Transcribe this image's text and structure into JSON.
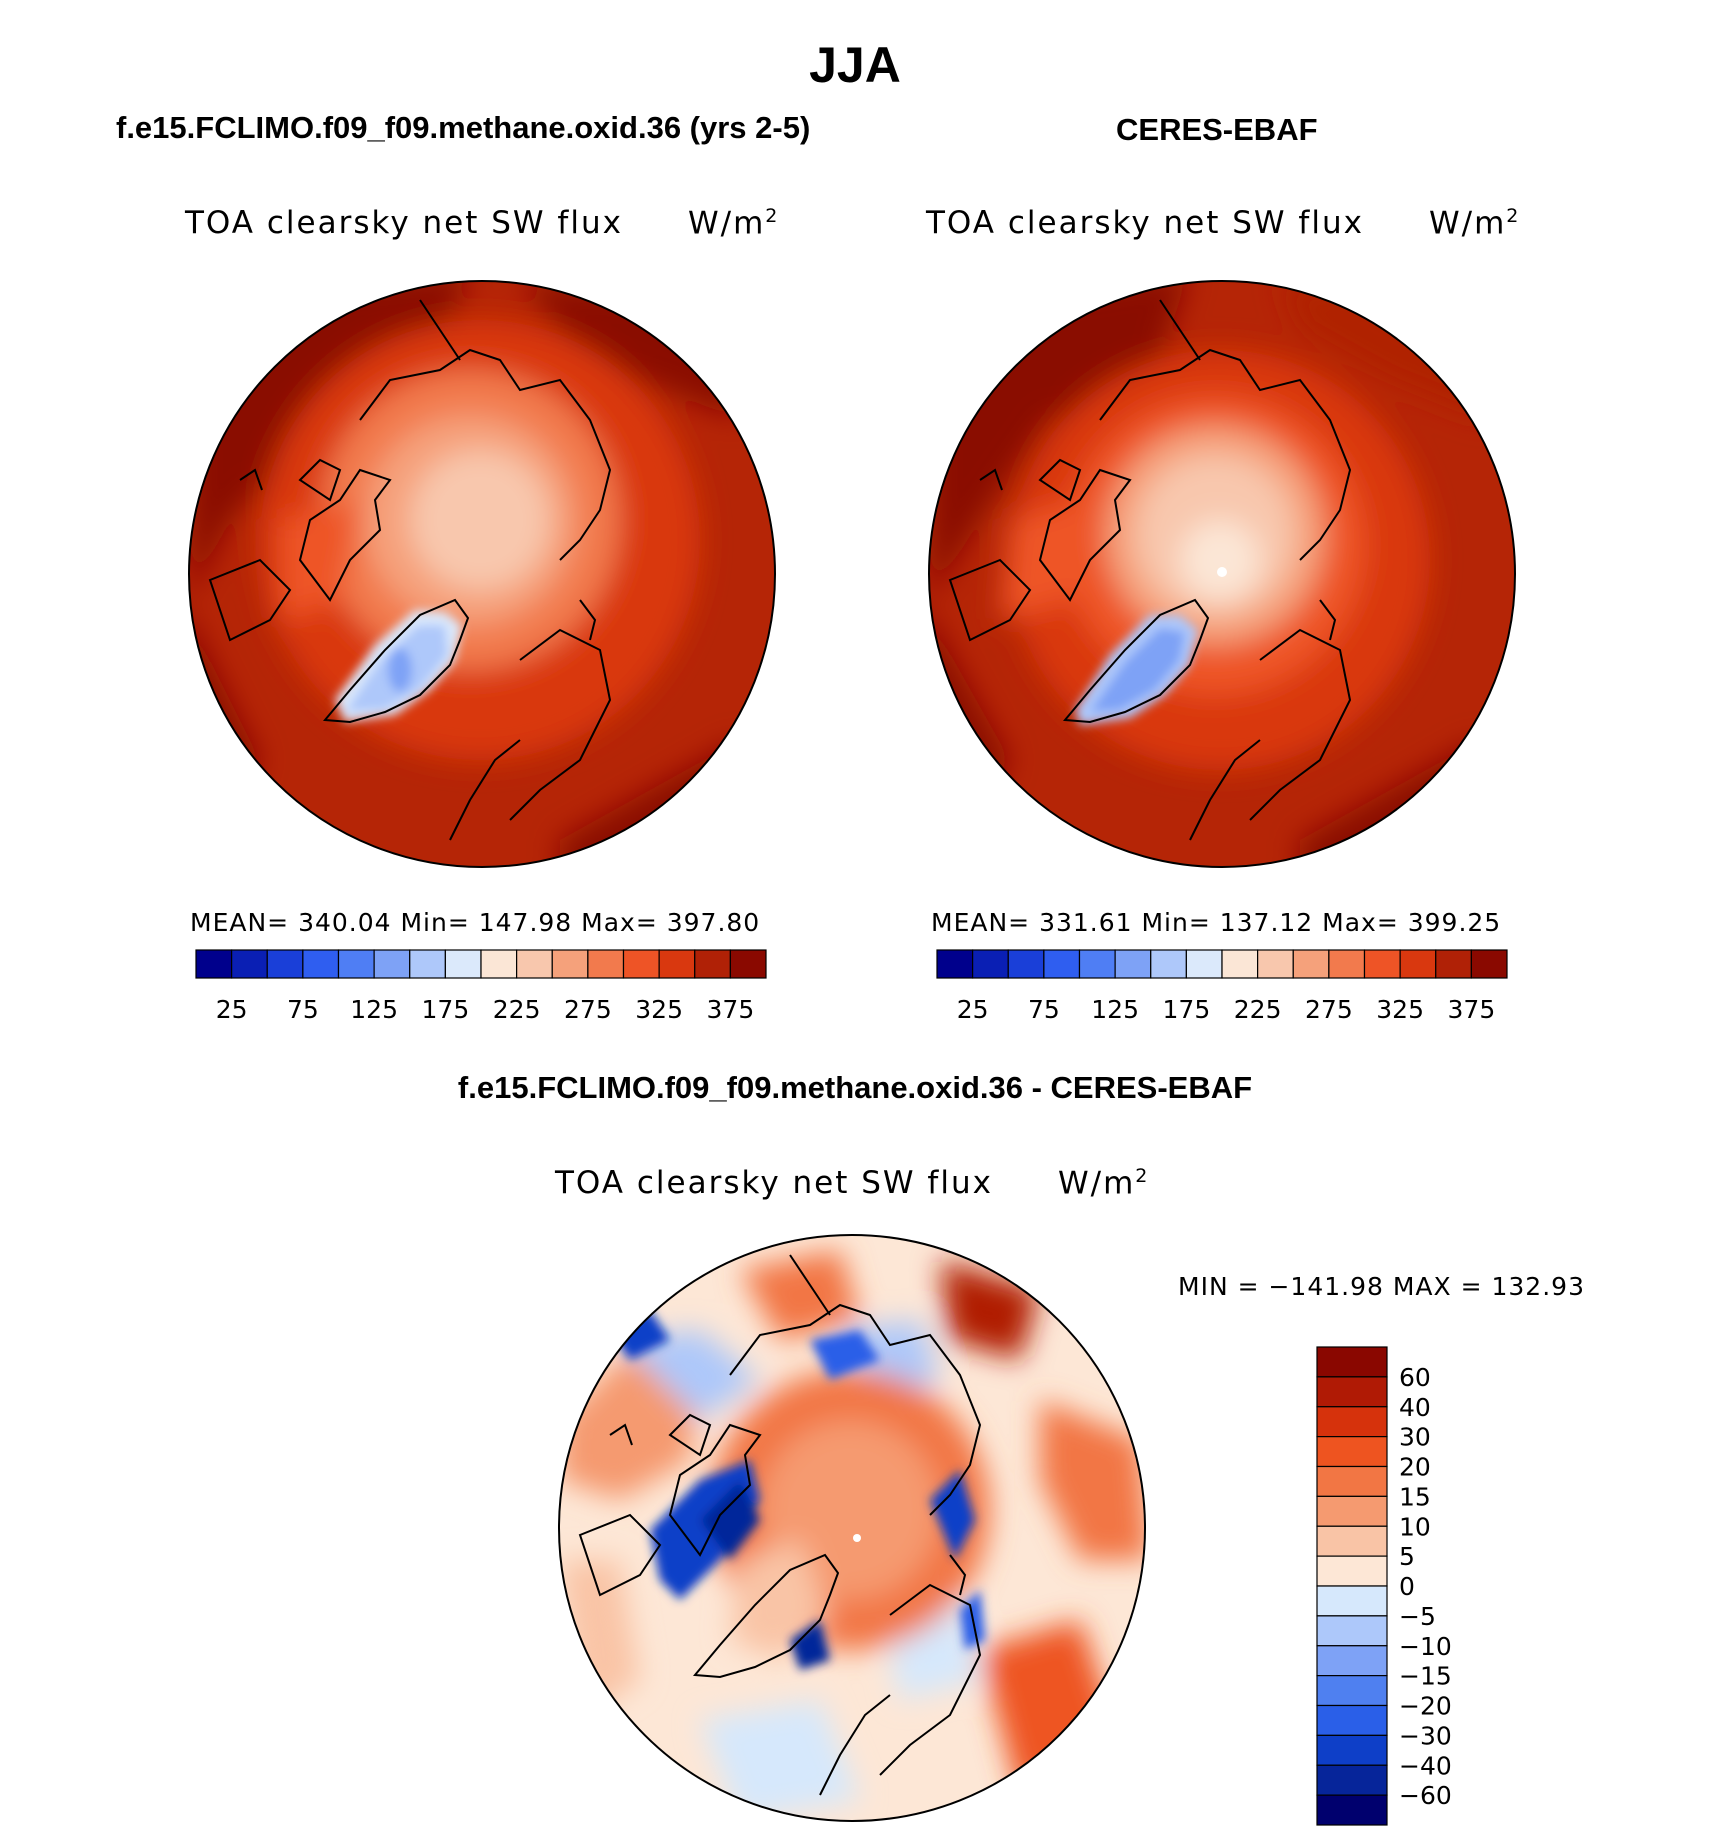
{
  "figure": {
    "season": "JJA",
    "diff_title": "f.e15.FCLIMO.f09_f09.methane.oxid.36 - CERES-EBAF"
  },
  "panels": [
    {
      "case_title": "f.e15.FCLIMO.f09_f09.methane.oxid.36 (yrs 2-5)",
      "variable": "TOA clearsky net SW flux",
      "units_base": "W/m",
      "units_sup": "2",
      "stats": "MEAN= 340.04   Min= 147.98   Max= 397.80"
    },
    {
      "case_title": "CERES-EBAF",
      "variable": "TOA clearsky net SW flux",
      "units_base": "W/m",
      "units_sup": "2",
      "stats": "MEAN= 331.61   Min= 137.12   Max= 399.25"
    },
    {
      "variable": "TOA clearsky net SW flux",
      "units_base": "W/m",
      "units_sup": "2",
      "stats": "MIN = −141.98 MAX = 132.93"
    }
  ],
  "colors": {
    "abs_scale": [
      "#00008c",
      "#0a1fb4",
      "#1a3fd8",
      "#2f5ef0",
      "#4f7ef4",
      "#7ea2f6",
      "#aec8fa",
      "#dbe9fb",
      "#fbe6d6",
      "#f8c7ad",
      "#f5a17b",
      "#f27a4d",
      "#ee5426",
      "#d9380f",
      "#b02106",
      "#8a0900"
    ],
    "diff_scale": [
      "#00006e",
      "#06259a",
      "#0e3fc8",
      "#2a5fe8",
      "#4f80f0",
      "#7ea2f6",
      "#adc8fa",
      "#d6e8fc",
      "#fde7d6",
      "#f9c4a6",
      "#f59a70",
      "#f27644",
      "#ee5420",
      "#d6320c",
      "#b01a05",
      "#8a0700"
    ],
    "coastline": "#000000"
  },
  "chart_data": [
    {
      "type": "heatmap",
      "title": "TOA clearsky net SW flux",
      "units": "W/m2",
      "projection": "north polar stereographic",
      "colorbar_ticks": [
        "25",
        "75",
        "125",
        "175",
        "225",
        "275",
        "325",
        "375"
      ],
      "levels": [
        25,
        50,
        75,
        100,
        125,
        150,
        175,
        200,
        225,
        250,
        275,
        300,
        325,
        350,
        375
      ],
      "mean": 340.04,
      "min": 147.98,
      "max": 397.8
    },
    {
      "type": "heatmap",
      "title": "TOA clearsky net SW flux",
      "units": "W/m2",
      "projection": "north polar stereographic",
      "colorbar_ticks": [
        "25",
        "75",
        "125",
        "175",
        "225",
        "275",
        "325",
        "375"
      ],
      "levels": [
        25,
        50,
        75,
        100,
        125,
        150,
        175,
        200,
        225,
        250,
        275,
        300,
        325,
        350,
        375
      ],
      "mean": 331.61,
      "min": 137.12,
      "max": 399.25
    },
    {
      "type": "heatmap",
      "title": "TOA clearsky net SW flux",
      "units": "W/m2",
      "projection": "north polar stereographic",
      "colorbar_ticks": [
        "60",
        "40",
        "30",
        "20",
        "15",
        "10",
        "5",
        "0",
        "−5",
        "−10",
        "−15",
        "−20",
        "−30",
        "−40",
        "−60"
      ],
      "levels": [
        60,
        40,
        30,
        20,
        15,
        10,
        5,
        0,
        -5,
        -10,
        -15,
        -20,
        -30,
        -40,
        -60
      ],
      "min": -141.98,
      "max": 132.93
    }
  ]
}
